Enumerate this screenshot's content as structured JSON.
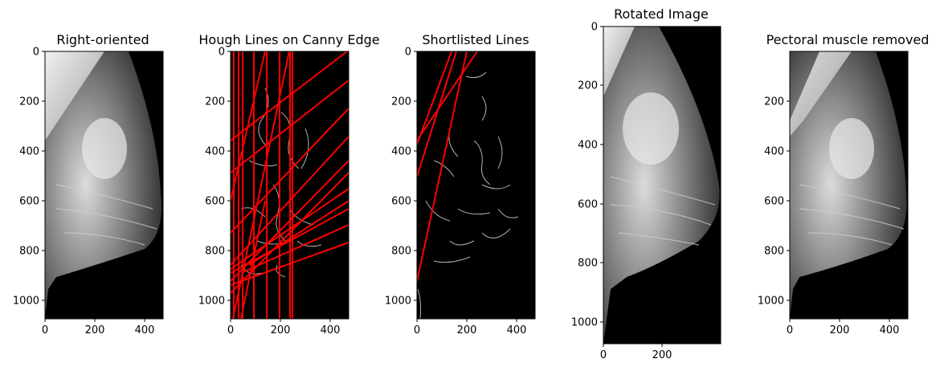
{
  "panels": [
    {
      "id": "p1",
      "title": "Right-oriented",
      "xticks": [
        "0",
        "200",
        "400"
      ],
      "yticks": [
        "0",
        "200",
        "400",
        "600",
        "800",
        "1000"
      ]
    },
    {
      "id": "p2",
      "title": "Hough Lines on Canny Edge",
      "xticks": [
        "0",
        "200",
        "400"
      ],
      "yticks": [
        "0",
        "200",
        "400",
        "600",
        "800",
        "1000"
      ]
    },
    {
      "id": "p3",
      "title": "Shortlisted Lines",
      "xticks": [
        "0",
        "200",
        "400"
      ],
      "yticks": [
        "0",
        "200",
        "400",
        "600",
        "800",
        "1000"
      ]
    },
    {
      "id": "p4",
      "title": "Rotated Image",
      "xticks": [
        "0",
        "200"
      ],
      "yticks": [
        "0",
        "200",
        "400",
        "600",
        "800",
        "1000"
      ]
    },
    {
      "id": "p5",
      "title": "Pectoral muscle removed",
      "xticks": [
        "0",
        "200",
        "400"
      ],
      "yticks": [
        "200",
        "400",
        "600",
        "800",
        "1000"
      ]
    }
  ],
  "colors": {
    "hough_line": "#ff0000",
    "edge": "#b0b0b0",
    "background": "#000000"
  }
}
